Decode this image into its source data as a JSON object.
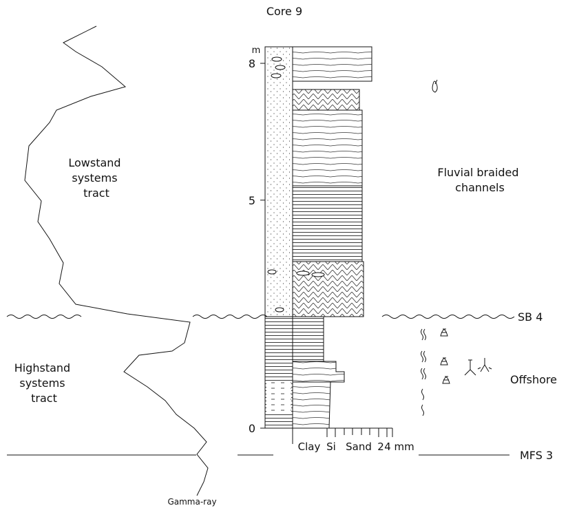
{
  "title": "Core 9",
  "depth_axis": {
    "unit": "m",
    "ticks": [
      8,
      5,
      0
    ]
  },
  "grain_scale": {
    "labels": [
      "Clay",
      "Si",
      "Sand",
      "2",
      "4 mm"
    ]
  },
  "intervals": {
    "upper": {
      "tract": [
        "Lowstand",
        "systems",
        "tract"
      ],
      "facies": [
        "Fluvial braided",
        "channels"
      ]
    },
    "lower": {
      "tract": [
        "Highstand",
        "systems",
        "tract"
      ],
      "facies": [
        "Offshore"
      ]
    }
  },
  "surfaces": [
    "SB 4",
    "MFS 3"
  ],
  "curve_label": "Gamma-ray"
}
